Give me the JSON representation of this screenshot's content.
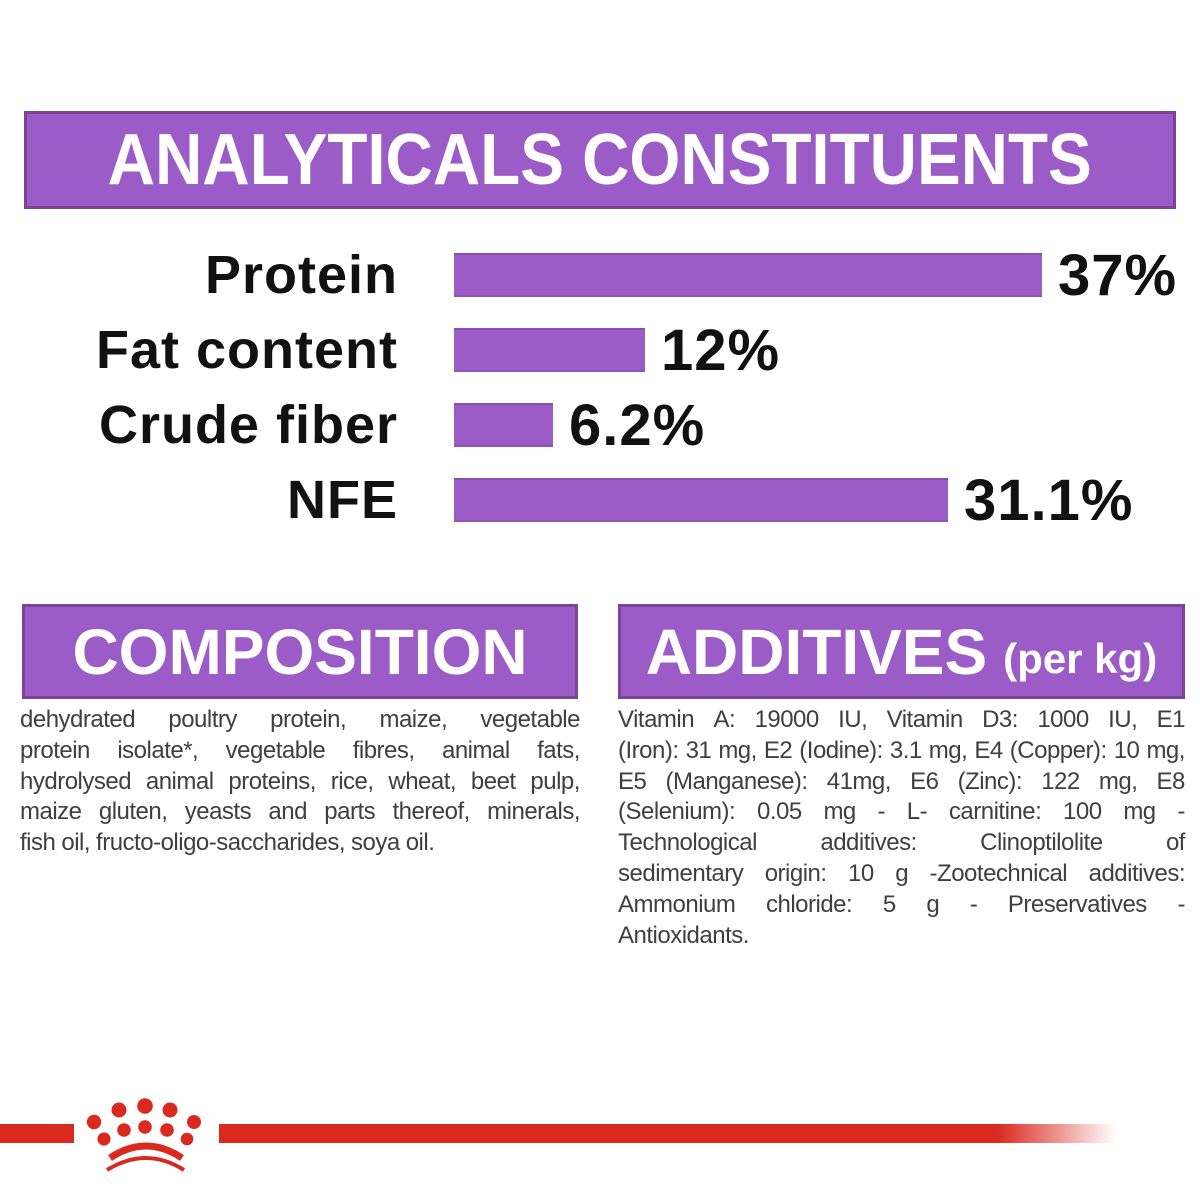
{
  "colors": {
    "purple": "#9c5cc7",
    "purple_border": "#7c4398",
    "red": "#da2a20",
    "heading_text": "#ffffff",
    "chart_text": "#111111",
    "body_text": "#3f3f3f"
  },
  "analytical_constituents": {
    "title": "ANALYTICALS CONSTITUENTS"
  },
  "chart_data": {
    "type": "bar",
    "orientation": "horizontal",
    "title": "ANALYTICALS CONSTITUENTS",
    "categories": [
      "Protein",
      "Fat content",
      "Crude fiber",
      "NFE"
    ],
    "values": [
      37,
      12,
      6.2,
      31.1
    ],
    "value_labels": [
      "37%",
      "12%",
      "6.2%",
      "31.1%"
    ],
    "unit": "%",
    "xlim": [
      0,
      37
    ],
    "bar_color": "#9c5cc7",
    "grid": false,
    "value_label_position": "right-of-bar"
  },
  "composition": {
    "title": "COMPOSITION",
    "lines": [
      "dehydrated poultry protein, maize, vegetable",
      "protein isolate*, vegetable fibres, animal fats,",
      "hydrolysed animal proteins, rice, wheat, beet pulp,",
      "maize gluten, yeasts and parts thereof, minerals,",
      "fish oil, fructo-oligo-saccharides, soya oil."
    ],
    "full_text": "dehydrated poultry protein, maize, vegetable protein isolate*, vegetable fibres, animal fats, hydrolysed animal proteins, rice, wheat, beet pulp, maize gluten, yeasts and parts thereof, minerals, fish oil, fructo-oligo-saccharides, soya oil."
  },
  "additives": {
    "title": "ADDITIVES",
    "title_suffix": "(per kg)",
    "lines": [
      "Vitamin A: 19000 IU, Vitamin D3: 1000 IU, E1",
      "(Iron): 31 mg, E2 (Iodine): 3.1 mg, E4 (Copper): 10 mg,",
      "E5 (Manganese): 41mg, E6 (Zinc): 122 mg, E8",
      "(Selenium): 0.05 mg - L- carnitine: 100 mg -",
      "Technological additives: Clinoptilolite of",
      "sedimentary origin: 10 g -Zootechnical additives:",
      "Ammonium chloride: 5 g - Preservatives -",
      "Antioxidants."
    ],
    "full_text": "Vitamin A: 19000 IU, Vitamin D3: 1000 IU, E1 (Iron): 31 mg, E2 (Iodine): 3.1 mg, E4 (Copper): 10 mg, E5 (Manganese): 41mg, E6 (Zinc): 122 mg, E8 (Selenium): 0.05 mg - L- carnitine: 100 mg - Technological additives: Clinoptilolite of sedimentary origin: 10 g -Zootechnical additives: Ammonium chloride: 5 g - Preservatives - Antioxidants."
  },
  "footer": {
    "brand_logo": "royal-canin-crown"
  }
}
